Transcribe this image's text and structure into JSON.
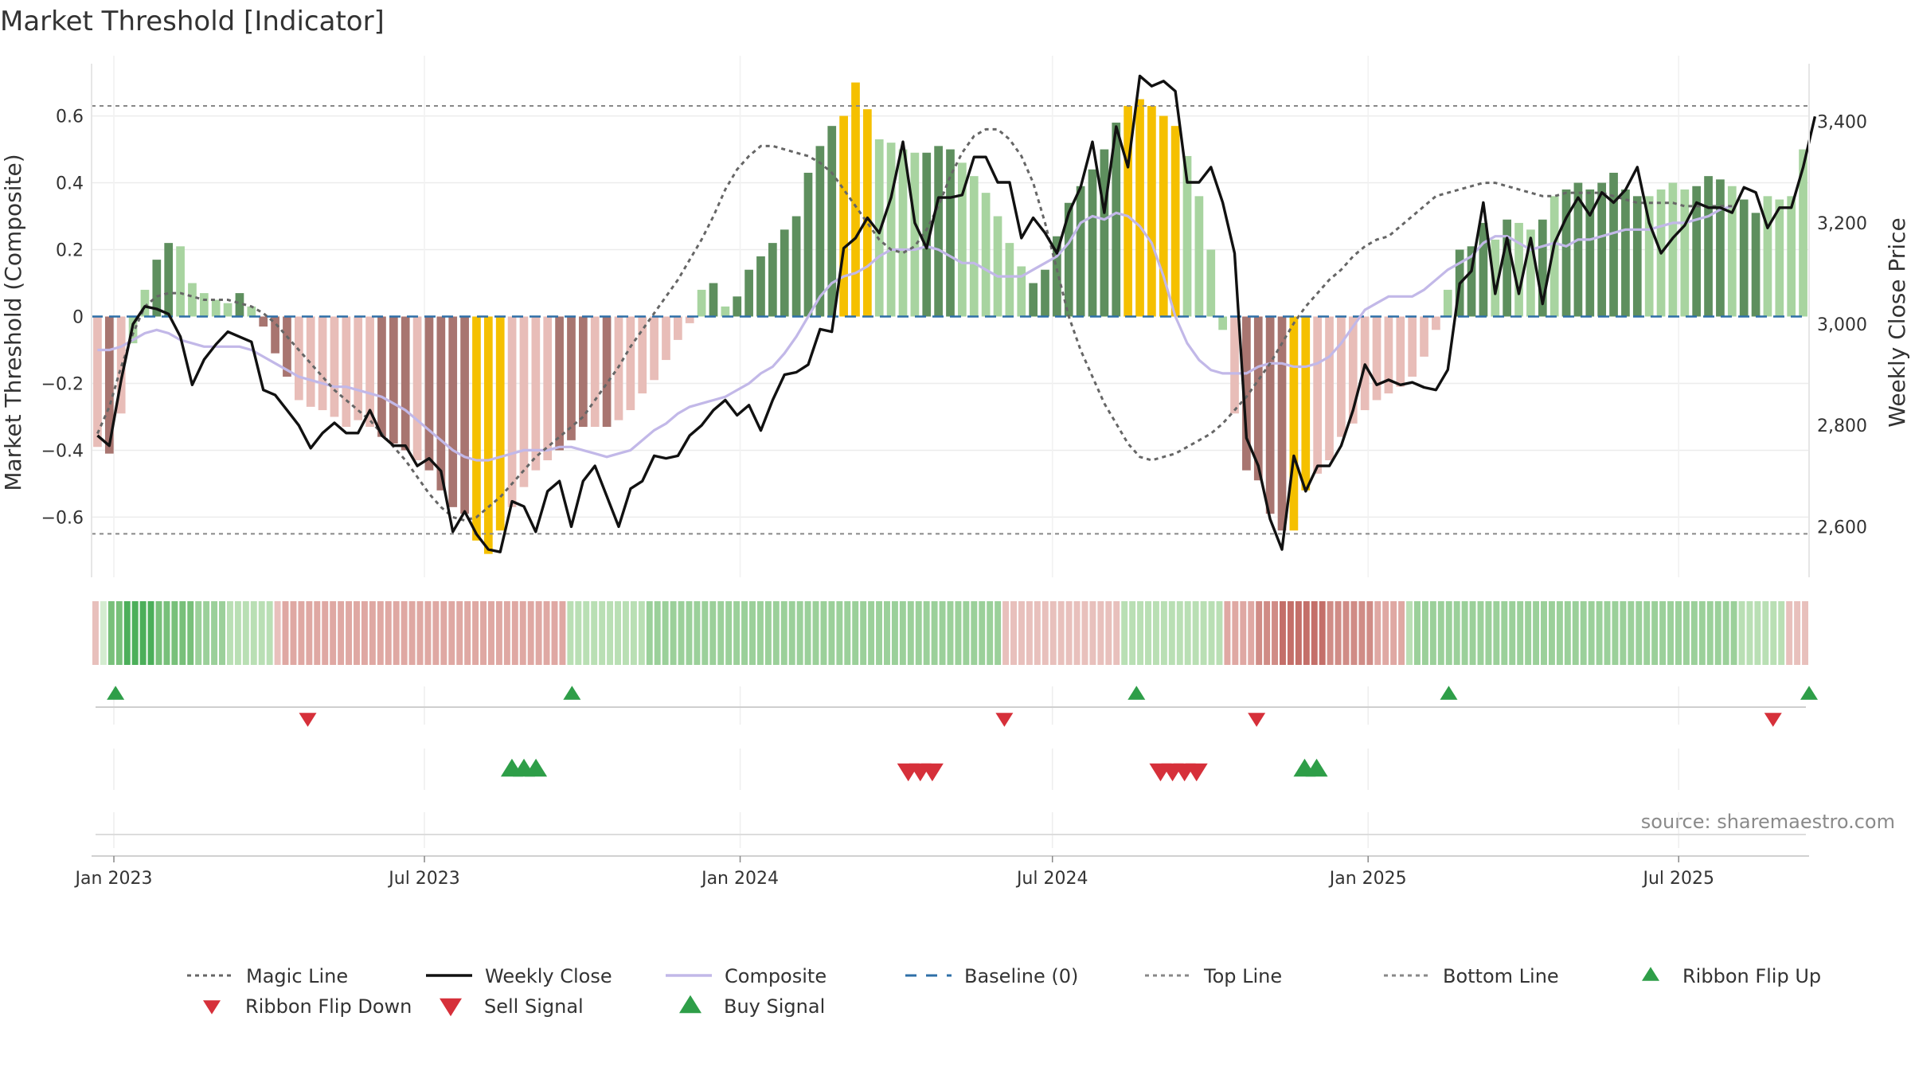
{
  "chart_data": {
    "type": "bar",
    "title": "Market Threshold [Indicator]",
    "ylabel": "Market Threshold (Composite)",
    "y2label": "Weekly Close Price",
    "source": "source: sharemaestro.com",
    "ylim": [
      -0.78,
      0.78
    ],
    "y2lim": [
      2500,
      3530
    ],
    "yticks": [
      -0.6,
      -0.4,
      -0.2,
      0,
      0.2,
      0.4,
      0.6
    ],
    "ytick_labels": [
      "−0.6",
      "−0.4",
      "−0.2",
      "0",
      "0.2",
      "0.4",
      "0.6"
    ],
    "y2ticks": [
      2600,
      2800,
      3000,
      3200,
      3400
    ],
    "y2tick_labels": [
      "2,600",
      "2,800",
      "3,000",
      "3,200",
      "3,400"
    ],
    "x_start": "2022-12-19",
    "x_end": "2025-09-15",
    "xticks": [
      {
        "date": "2023-01-01",
        "label": "Jan 2023"
      },
      {
        "date": "2023-07-01",
        "label": "Jul 2023"
      },
      {
        "date": "2024-01-01",
        "label": "Jan 2024"
      },
      {
        "date": "2024-07-01",
        "label": "Jul 2024"
      },
      {
        "date": "2025-01-01",
        "label": "Jan 2025"
      },
      {
        "date": "2025-07-01",
        "label": "Jul 2025"
      }
    ],
    "top_line": 0.63,
    "bottom_line": -0.65,
    "grid": true,
    "legend_position": "bottom",
    "colors": {
      "strong_pos": "#5e8f5e",
      "weak_pos": "#a8d4a0",
      "strong_neg": "#a87570",
      "weak_neg": "#e8bdb8",
      "extreme": "#f5c000",
      "weekly_close": "#111111",
      "composite": "#c2b8e8",
      "magic_line": "#666666",
      "baseline": "#2e6fa7",
      "threshold": "#888888",
      "buy": "#2e9e48",
      "sell": "#d6303a"
    },
    "composite_bars": [
      -0.39,
      -0.41,
      -0.29,
      -0.08,
      0.08,
      0.17,
      0.22,
      0.21,
      0.1,
      0.07,
      0.05,
      0.04,
      0.07,
      0.03,
      -0.03,
      -0.11,
      -0.18,
      -0.25,
      -0.27,
      -0.28,
      -0.3,
      -0.33,
      -0.31,
      -0.33,
      -0.36,
      -0.38,
      -0.4,
      -0.43,
      -0.46,
      -0.52,
      -0.57,
      -0.59,
      -0.67,
      -0.71,
      -0.64,
      -0.57,
      -0.51,
      -0.46,
      -0.43,
      -0.4,
      -0.37,
      -0.33,
      -0.33,
      -0.33,
      -0.31,
      -0.28,
      -0.23,
      -0.19,
      -0.13,
      -0.07,
      -0.02,
      0.08,
      0.1,
      0.03,
      0.06,
      0.14,
      0.18,
      0.22,
      0.26,
      0.3,
      0.43,
      0.51,
      0.57,
      0.6,
      0.7,
      0.62,
      0.53,
      0.52,
      0.5,
      0.49,
      0.49,
      0.51,
      0.5,
      0.46,
      0.42,
      0.37,
      0.3,
      0.22,
      0.15,
      0.1,
      0.14,
      0.24,
      0.34,
      0.39,
      0.44,
      0.5,
      0.58,
      0.63,
      0.65,
      0.63,
      0.6,
      0.57,
      0.48,
      0.36,
      0.2,
      -0.04,
      -0.29,
      -0.46,
      -0.49,
      -0.59,
      -0.64,
      -0.64,
      -0.52,
      -0.47,
      -0.43,
      -0.36,
      -0.32,
      -0.28,
      -0.25,
      -0.23,
      -0.21,
      -0.18,
      -0.12,
      -0.04,
      0.08,
      0.2,
      0.21,
      0.28,
      0.23,
      0.29,
      0.28,
      0.26,
      0.29,
      0.36,
      0.38,
      0.4,
      0.38,
      0.4,
      0.43,
      0.38,
      0.36,
      0.36,
      0.38,
      0.4,
      0.38,
      0.39,
      0.42,
      0.41,
      0.39,
      0.35,
      0.31,
      0.36,
      0.35,
      0.36,
      0.5
    ],
    "bar_types": [
      "wn",
      "sn",
      "wn",
      "wp",
      "wp",
      "sp",
      "sp",
      "wp",
      "wp",
      "wp",
      "wp",
      "wp",
      "sp",
      "wp",
      "sn",
      "sn",
      "sn",
      "wn",
      "wn",
      "wn",
      "wn",
      "wn",
      "wn",
      "wn",
      "sn",
      "sn",
      "sn",
      "wn",
      "sn",
      "sn",
      "sn",
      "sn",
      "ex",
      "ex",
      "ex",
      "wn",
      "wn",
      "wn",
      "wn",
      "sn",
      "sn",
      "sn",
      "wn",
      "sn",
      "wn",
      "wn",
      "wn",
      "wn",
      "wn",
      "wn",
      "wn",
      "wp",
      "sp",
      "wp",
      "sp",
      "sp",
      "sp",
      "sp",
      "sp",
      "sp",
      "sp",
      "sp",
      "sp",
      "ex",
      "ex",
      "ex",
      "wp",
      "wp",
      "wp",
      "wp",
      "sp",
      "sp",
      "sp",
      "wp",
      "wp",
      "wp",
      "wp",
      "wp",
      "wp",
      "sp",
      "sp",
      "sp",
      "sp",
      "sp",
      "sp",
      "sp",
      "sp",
      "ex",
      "ex",
      "ex",
      "ex",
      "ex",
      "wp",
      "wp",
      "wp",
      "wp",
      "wn",
      "sn",
      "sn",
      "sn",
      "sn",
      "ex",
      "ex",
      "wn",
      "wn",
      "wn",
      "wn",
      "wn",
      "wn",
      "wn",
      "wn",
      "wn",
      "wn",
      "wn",
      "wp",
      "sp",
      "sp",
      "sp",
      "wp",
      "sp",
      "wp",
      "wp",
      "sp",
      "wp",
      "sp",
      "sp",
      "sp",
      "sp",
      "sp",
      "sp",
      "sp",
      "wp",
      "wp",
      "wp",
      "wp",
      "sp",
      "sp",
      "sp",
      "wp",
      "sp",
      "sp",
      "wp",
      "wp",
      "wp",
      "wp",
      "wp",
      "sp"
    ],
    "weekly_close": [
      2780,
      2760,
      2890,
      3000,
      3035,
      3030,
      3020,
      2975,
      2880,
      2930,
      2960,
      2985,
      2975,
      2965,
      2870,
      2860,
      2830,
      2800,
      2755,
      2785,
      2805,
      2785,
      2785,
      2830,
      2780,
      2760,
      2760,
      2720,
      2735,
      2710,
      2590,
      2630,
      2585,
      2555,
      2550,
      2650,
      2640,
      2590,
      2670,
      2690,
      2600,
      2690,
      2720,
      2660,
      2600,
      2675,
      2690,
      2740,
      2735,
      2740,
      2780,
      2800,
      2830,
      2850,
      2820,
      2840,
      2790,
      2850,
      2900,
      2905,
      2920,
      2990,
      2985,
      3150,
      3170,
      3210,
      3180,
      3250,
      3360,
      3200,
      3150,
      3250,
      3250,
      3255,
      3330,
      3330,
      3280,
      3280,
      3170,
      3210,
      3180,
      3140,
      3220,
      3270,
      3360,
      3220,
      3390,
      3310,
      3490,
      3470,
      3480,
      3460,
      3280,
      3280,
      3310,
      3240,
      3140,
      2775,
      2720,
      2615,
      2555,
      2740,
      2670,
      2720,
      2720,
      2760,
      2830,
      2920,
      2880,
      2890,
      2880,
      2885,
      2875,
      2870,
      2910,
      3080,
      3105,
      3240,
      3060,
      3170,
      3060,
      3170,
      3040,
      3160,
      3210,
      3250,
      3215,
      3260,
      3240,
      3265,
      3310,
      3200,
      3140,
      3170,
      3195,
      3240,
      3230,
      3230,
      3220,
      3270,
      3260,
      3190,
      3230,
      3230,
      3310,
      3410
    ],
    "composite_line": [
      -0.1,
      -0.1,
      -0.09,
      -0.07,
      -0.05,
      -0.04,
      -0.05,
      -0.07,
      -0.08,
      -0.09,
      -0.09,
      -0.09,
      -0.09,
      -0.1,
      -0.12,
      -0.14,
      -0.16,
      -0.18,
      -0.19,
      -0.2,
      -0.21,
      -0.21,
      -0.22,
      -0.23,
      -0.24,
      -0.26,
      -0.28,
      -0.31,
      -0.34,
      -0.37,
      -0.4,
      -0.42,
      -0.43,
      -0.43,
      -0.42,
      -0.41,
      -0.4,
      -0.4,
      -0.4,
      -0.39,
      -0.39,
      -0.4,
      -0.41,
      -0.42,
      -0.41,
      -0.4,
      -0.37,
      -0.34,
      -0.32,
      -0.29,
      -0.27,
      -0.26,
      -0.25,
      -0.24,
      -0.22,
      -0.2,
      -0.17,
      -0.15,
      -0.11,
      -0.06,
      0.0,
      0.06,
      0.1,
      0.12,
      0.13,
      0.15,
      0.18,
      0.2,
      0.2,
      0.2,
      0.21,
      0.2,
      0.18,
      0.16,
      0.16,
      0.14,
      0.12,
      0.12,
      0.12,
      0.14,
      0.16,
      0.18,
      0.22,
      0.28,
      0.3,
      0.29,
      0.31,
      0.3,
      0.27,
      0.22,
      0.12,
      0.0,
      -0.08,
      -0.13,
      -0.16,
      -0.17,
      -0.17,
      -0.17,
      -0.15,
      -0.14,
      -0.14,
      -0.15,
      -0.15,
      -0.14,
      -0.12,
      -0.08,
      -0.03,
      0.02,
      0.04,
      0.06,
      0.06,
      0.06,
      0.08,
      0.11,
      0.14,
      0.16,
      0.18,
      0.22,
      0.24,
      0.24,
      0.22,
      0.2,
      0.21,
      0.22,
      0.21,
      0.23,
      0.23,
      0.24,
      0.25,
      0.26,
      0.26,
      0.26,
      0.27,
      0.28,
      0.28,
      0.29,
      0.3,
      0.32,
      0.33
    ],
    "magic_line": [
      -0.35,
      -0.27,
      -0.15,
      -0.05,
      0.03,
      0.06,
      0.07,
      0.07,
      0.06,
      0.05,
      0.05,
      0.05,
      0.04,
      0.03,
      0.01,
      -0.02,
      -0.06,
      -0.1,
      -0.14,
      -0.18,
      -0.22,
      -0.25,
      -0.28,
      -0.31,
      -0.35,
      -0.39,
      -0.43,
      -0.48,
      -0.53,
      -0.57,
      -0.6,
      -0.61,
      -0.6,
      -0.57,
      -0.54,
      -0.5,
      -0.46,
      -0.42,
      -0.39,
      -0.36,
      -0.33,
      -0.3,
      -0.25,
      -0.2,
      -0.15,
      -0.09,
      -0.04,
      0.01,
      0.06,
      0.11,
      0.17,
      0.23,
      0.3,
      0.38,
      0.44,
      0.48,
      0.51,
      0.51,
      0.5,
      0.49,
      0.48,
      0.46,
      0.43,
      0.38,
      0.33,
      0.28,
      0.23,
      0.2,
      0.19,
      0.21,
      0.26,
      0.33,
      0.42,
      0.49,
      0.54,
      0.56,
      0.56,
      0.53,
      0.48,
      0.4,
      0.28,
      0.14,
      0.0,
      -0.1,
      -0.18,
      -0.26,
      -0.32,
      -0.38,
      -0.42,
      -0.43,
      -0.42,
      -0.41,
      -0.39,
      -0.37,
      -0.35,
      -0.32,
      -0.28,
      -0.24,
      -0.19,
      -0.14,
      -0.08,
      -0.02,
      0.03,
      0.07,
      0.11,
      0.14,
      0.18,
      0.21,
      0.23,
      0.24,
      0.27,
      0.3,
      0.33,
      0.36,
      0.37,
      0.38,
      0.39,
      0.4,
      0.4,
      0.39,
      0.38,
      0.37,
      0.36,
      0.36,
      0.37,
      0.37,
      0.37,
      0.37,
      0.36,
      0.35,
      0.34,
      0.34,
      0.34,
      0.34,
      0.33,
      0.33,
      0.33,
      0.33,
      0.33
    ],
    "ribbon_levels": [
      -1,
      0,
      3,
      3,
      4,
      4,
      4,
      4,
      3,
      3,
      3,
      3,
      3,
      2,
      2,
      2,
      2,
      1,
      1,
      1,
      1,
      1,
      1,
      -1,
      -2,
      -2,
      -2,
      -2,
      -2,
      -2,
      -2,
      -2,
      -2,
      -2,
      -2,
      -2,
      -2,
      -2,
      -2,
      -2,
      -2,
      -2,
      -2,
      -2,
      -2,
      -2,
      -2,
      -2,
      -2,
      -2,
      -2,
      -2,
      -2,
      -2,
      -2,
      -2,
      -2,
      -2,
      -2,
      -2,
      1,
      1,
      1,
      1,
      1,
      1,
      1,
      1,
      1,
      1,
      2,
      2,
      2,
      2,
      2,
      2,
      2,
      2,
      2,
      2,
      2,
      2,
      2,
      2,
      2,
      2,
      2,
      2,
      2,
      2,
      2,
      2,
      2,
      2,
      2,
      2,
      2,
      2,
      2,
      2,
      2,
      2,
      2,
      2,
      2,
      2,
      2,
      2,
      2,
      2,
      2,
      2,
      2,
      2,
      2,
      -1,
      -1,
      -1,
      -1,
      -1,
      -1,
      -1,
      -1,
      -1,
      -1,
      -1,
      -1,
      -1,
      -1,
      -1,
      1,
      1,
      1,
      1,
      1,
      1,
      1,
      1,
      1,
      1,
      1,
      1,
      1,
      -2,
      -2,
      -2,
      -2,
      -3,
      -3,
      -3,
      -4,
      -4,
      -4,
      -4,
      -4,
      -4,
      -3,
      -3,
      -3,
      -3,
      -3,
      -3,
      -2,
      -2,
      -2,
      -2,
      1,
      2,
      2,
      2,
      2,
      2,
      2,
      2,
      2,
      2,
      2,
      2,
      2,
      2,
      2,
      2,
      2,
      2,
      2,
      2,
      2,
      2,
      2,
      2,
      2,
      2,
      2,
      2,
      2,
      2,
      2,
      2,
      2,
      2,
      2,
      2,
      2,
      2,
      2,
      2,
      2,
      2,
      1,
      1,
      1,
      1,
      1,
      1,
      -1,
      -1,
      -1
    ],
    "ribbon_flip_up": [
      "2023-01-02",
      "2023-09-25",
      "2024-08-19",
      "2025-02-17",
      "2025-09-15"
    ],
    "ribbon_flip_down": [
      "2023-04-24",
      "2024-06-03",
      "2024-10-28",
      "2025-08-25"
    ],
    "buy_signals": [
      "2023-08-21",
      "2023-08-28",
      "2023-09-04",
      "2024-11-25",
      "2024-12-02"
    ],
    "sell_signals": [
      "2024-04-08",
      "2024-04-15",
      "2024-04-22",
      "2024-09-02",
      "2024-09-09",
      "2024-09-16",
      "2024-09-23"
    ],
    "legend": [
      {
        "key": "magic",
        "label": "Magic Line"
      },
      {
        "key": "close",
        "label": "Weekly Close"
      },
      {
        "key": "composite",
        "label": "Composite"
      },
      {
        "key": "baseline",
        "label": "Baseline (0)"
      },
      {
        "key": "top",
        "label": "Top Line"
      },
      {
        "key": "bottom",
        "label": "Bottom Line"
      },
      {
        "key": "flipup",
        "label": "Ribbon Flip Up"
      },
      {
        "key": "flipdown",
        "label": "Ribbon Flip Down"
      },
      {
        "key": "sell",
        "label": "Sell Signal"
      },
      {
        "key": "buy",
        "label": "Buy Signal"
      }
    ]
  }
}
